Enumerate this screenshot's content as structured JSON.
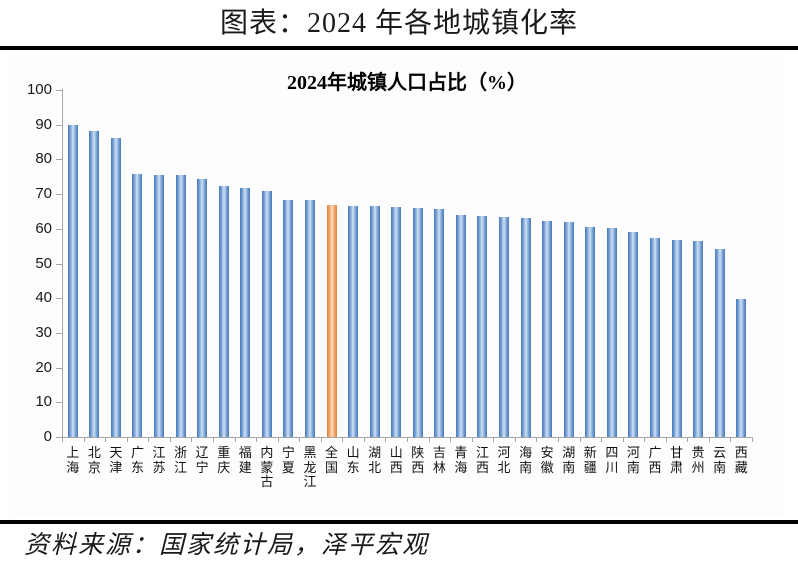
{
  "page": {
    "title": "图表：2024 年各地城镇化率",
    "source": "资料来源：国家统计局，泽平宏观"
  },
  "chart_data": {
    "type": "bar",
    "title": "2024年城镇人口占比（%）",
    "categories": [
      "上海",
      "北京",
      "天津",
      "广东",
      "江苏",
      "浙江",
      "辽宁",
      "重庆",
      "福建",
      "内蒙古",
      "宁夏",
      "黑龙江",
      "全国",
      "山东",
      "湖北",
      "山西",
      "陕西",
      "吉林",
      "青海",
      "江西",
      "河北",
      "海南",
      "安徽",
      "湖南",
      "新疆",
      "四川",
      "河南",
      "广西",
      "甘肃",
      "贵州",
      "云南",
      "西藏"
    ],
    "values": [
      89.9,
      88.3,
      86.1,
      75.9,
      75.6,
      75.4,
      74.3,
      72.3,
      71.9,
      70.8,
      68.4,
      68.2,
      67.0,
      66.6,
      66.5,
      66.4,
      66.1,
      65.8,
      63.9,
      63.7,
      63.5,
      63.1,
      62.3,
      62.1,
      60.4,
      60.3,
      59.2,
      57.4,
      56.9,
      56.6,
      54.1,
      39.7
    ],
    "highlight_category": "全国",
    "ylim": [
      0,
      100
    ],
    "yticks": [
      0,
      10,
      20,
      30,
      40,
      50,
      60,
      70,
      80,
      90,
      100
    ],
    "grid": false,
    "legend": false,
    "xlabel": "",
    "ylabel": "",
    "colors": {
      "bar_gradient": [
        "#4377bb",
        "#86abd9",
        "#c6d9ef"
      ],
      "highlight_gradient": [
        "#e4823a",
        "#f2ab72",
        "#fbd8b5"
      ],
      "axis": "#a6a6a6",
      "divider": "#000000",
      "text": "#1a1a1a"
    }
  }
}
